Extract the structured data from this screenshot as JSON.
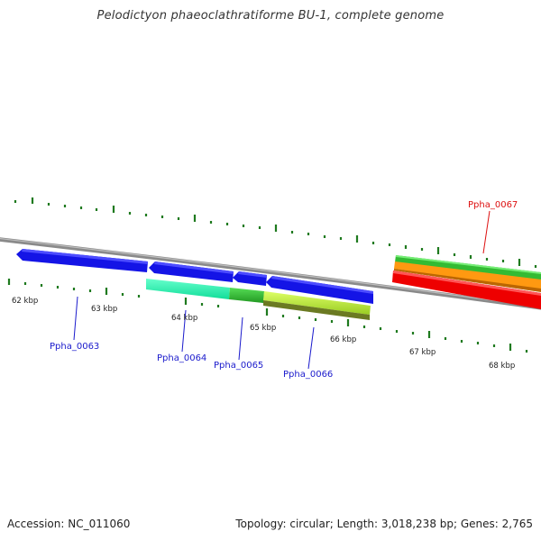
{
  "title": "Pelodictyon phaeoclathratiforme BU-1, complete genome",
  "footer": {
    "accession": "Accession: NC_011060",
    "summary": "Topology: circular; Length: 3,018,238 bp; Genes: 2,765"
  },
  "colors": {
    "backbone": "#8a8a8a",
    "tick": "#1f7a1f",
    "label_blue": "#1a1acc",
    "label_red": "#dd1111"
  },
  "ticks": [
    "62 kbp",
    "63 kbp",
    "64 kbp",
    "65 kbp",
    "66 kbp",
    "67 kbp",
    "68 kbp"
  ],
  "genes": [
    {
      "id": "Ppha_0063",
      "strand": "reverse",
      "color": "#1a1ae0"
    },
    {
      "id": "Ppha_0064",
      "strand": "reverse",
      "color": "#1a1ae0"
    },
    {
      "id": "Ppha_0065",
      "strand": "reverse",
      "color": "#1a1ae0"
    },
    {
      "id": "Ppha_0066",
      "strand": "forward",
      "color": "#1a1ae0"
    },
    {
      "id": "Ppha_0067",
      "strand": "forward",
      "color": "#ee1111"
    }
  ],
  "labels": [
    {
      "text": "Ppha_0063",
      "color": "#1a1acc"
    },
    {
      "text": "Ppha_0064",
      "color": "#1a1acc"
    },
    {
      "text": "Ppha_0065",
      "color": "#1a1acc"
    },
    {
      "text": "Ppha_0066",
      "color": "#1a1acc"
    },
    {
      "text": "Ppha_0067",
      "color": "#dd1111"
    }
  ]
}
